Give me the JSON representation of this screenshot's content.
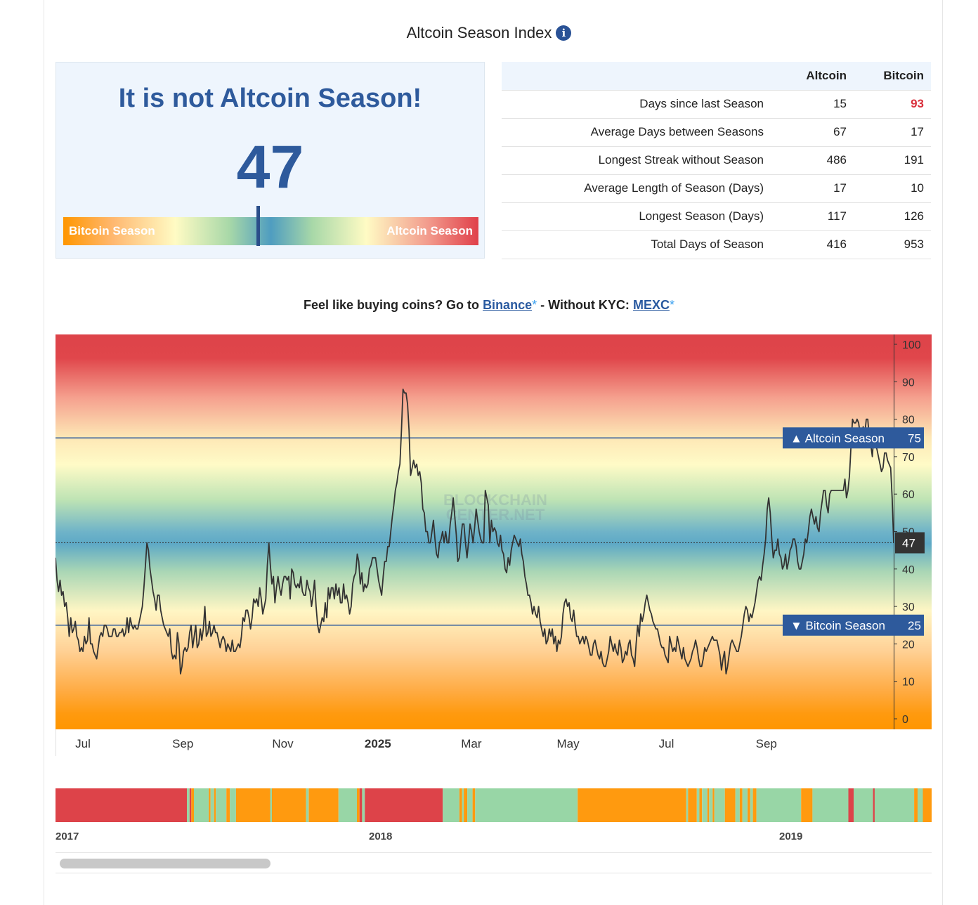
{
  "header": {
    "title": "Altcoin Season Index",
    "info_icon": "info-icon"
  },
  "status": {
    "headline": "It is not Altcoin Season!",
    "value": "47",
    "gauge_left_label": "Bitcoin Season",
    "gauge_right_label": "Altcoin Season",
    "gauge_level": 47
  },
  "stats": {
    "headers": [
      "",
      "Altcoin",
      "Bitcoin"
    ],
    "rows": [
      {
        "label": "Days since last Season",
        "altcoin": "15",
        "bitcoin": "93",
        "bitcoin_highlight": true
      },
      {
        "label": "Average Days between Seasons",
        "altcoin": "67",
        "bitcoin": "17"
      },
      {
        "label": "Longest Streak without Season",
        "altcoin": "486",
        "bitcoin": "191"
      },
      {
        "label": "Average Length of Season (Days)",
        "altcoin": "17",
        "bitcoin": "10"
      },
      {
        "label": "Longest Season (Days)",
        "altcoin": "117",
        "bitcoin": "126"
      },
      {
        "label": "Total Days of Season",
        "altcoin": "416",
        "bitcoin": "953"
      }
    ]
  },
  "promo": {
    "prefix": "Feel like buying coins? Go to",
    "link1": "Binance",
    "star": "*",
    "middle": "- Without KYC:",
    "link2": "MEXC"
  },
  "chart_data": [
    {
      "type": "line",
      "watermark": [
        "BLOCKCHAIN",
        "CENTER.NET"
      ],
      "ylim": [
        0,
        100
      ],
      "yticks": [
        0,
        10,
        20,
        30,
        40,
        50,
        60,
        70,
        80,
        90,
        100
      ],
      "x_tick_labels": [
        "Jul",
        "Sep",
        "Nov",
        "2025",
        "Mar",
        "May",
        "Jul",
        "Sep"
      ],
      "x_tick_days": [
        17,
        79,
        141,
        200,
        258,
        318,
        379,
        441
      ],
      "x_range_days": [
        0,
        520
      ],
      "current_value": 47,
      "thresholds": [
        {
          "label": "Altcoin Season",
          "value": 75,
          "direction": "up",
          "color": "#2e5a9c"
        },
        {
          "label": "Bitcoin Season",
          "value": 25,
          "direction": "down",
          "color": "#2e5a9c"
        }
      ],
      "line_color": "#333333",
      "background_colors": {
        "top": "#e0404a",
        "middle": "#4f9dc0",
        "bottom": "#ff9600"
      },
      "series": [
        {
          "values": [
            43,
            37,
            34,
            37,
            33,
            34,
            30,
            31,
            27,
            22,
            27,
            23,
            24,
            26,
            22,
            21,
            18,
            19,
            18,
            22,
            20,
            21,
            27,
            20,
            20,
            18,
            17,
            16,
            19,
            22,
            23,
            22,
            25,
            25,
            24,
            22,
            22,
            22,
            24,
            24,
            22,
            22,
            23,
            23,
            24,
            22,
            23,
            27,
            23,
            27,
            25,
            24,
            25,
            24,
            24,
            26,
            28,
            30,
            35,
            41,
            47,
            45,
            40,
            37,
            34,
            32,
            29,
            33,
            33,
            29,
            27,
            25,
            24,
            23,
            22,
            24,
            18,
            16,
            17,
            16,
            23,
            20,
            12,
            14,
            18,
            19,
            18,
            19,
            23,
            25,
            19,
            22,
            25,
            19,
            20,
            24,
            21,
            24,
            30,
            22,
            23,
            26,
            22,
            23,
            25,
            23,
            23,
            21,
            19,
            21,
            22,
            21,
            18,
            20,
            19,
            18,
            21,
            18,
            18,
            19,
            20,
            19,
            22,
            27,
            26,
            29,
            29,
            27,
            24,
            27,
            32,
            31,
            32,
            30,
            35,
            32,
            28,
            30,
            32,
            41,
            47,
            41,
            36,
            38,
            31,
            35,
            38,
            35,
            33,
            36,
            38,
            38,
            37,
            38,
            32,
            40,
            39,
            36,
            35,
            36,
            35,
            38,
            34,
            33,
            33,
            37,
            35,
            34,
            30,
            33,
            37,
            30,
            25,
            23,
            25,
            27,
            26,
            31,
            27,
            35,
            32,
            35,
            35,
            32,
            36,
            33,
            35,
            31,
            31,
            36,
            32,
            33,
            31,
            28,
            30,
            36,
            38,
            39,
            44,
            42,
            36,
            39,
            34,
            36,
            35,
            36,
            40,
            41,
            43,
            43,
            43,
            40,
            37,
            35,
            33,
            38,
            42,
            42,
            46,
            46,
            50,
            54,
            57,
            61,
            63,
            66,
            68,
            77,
            88,
            87,
            87,
            84,
            77,
            65,
            67,
            69,
            67,
            68,
            65,
            66,
            63,
            56,
            55,
            50,
            50,
            47,
            47,
            50,
            53,
            48,
            44,
            43,
            47,
            48,
            50,
            47,
            50,
            47,
            47,
            52,
            55,
            59,
            54,
            49,
            42,
            43,
            48,
            52,
            52,
            47,
            43,
            47,
            52,
            50,
            47,
            51,
            56,
            53,
            50,
            48,
            47,
            47,
            61,
            59,
            57,
            47,
            53,
            50,
            51,
            50,
            47,
            46,
            49,
            45,
            44,
            40,
            39,
            43,
            41,
            45,
            47,
            49,
            48,
            47,
            46,
            48,
            44,
            42,
            38,
            36,
            33,
            33,
            31,
            28,
            30,
            28,
            27,
            30,
            26,
            24,
            22,
            24,
            20,
            21,
            24,
            22,
            24,
            20,
            22,
            18,
            21,
            20,
            22,
            28,
            31,
            32,
            30,
            31,
            27,
            26,
            29,
            25,
            22,
            22,
            20,
            21,
            22,
            20,
            22,
            21,
            19,
            17,
            17,
            20,
            21,
            19,
            17,
            16,
            18,
            15,
            14,
            14,
            16,
            18,
            22,
            20,
            18,
            20,
            18,
            17,
            21,
            19,
            15,
            16,
            18,
            17,
            20,
            21,
            17,
            16,
            14,
            20,
            25,
            22,
            28,
            26,
            28,
            31,
            33,
            31,
            29,
            28,
            26,
            25,
            24,
            24,
            22,
            20,
            19,
            19,
            17,
            16,
            15,
            22,
            20,
            18,
            19,
            18,
            22,
            20,
            18,
            16,
            19,
            16,
            15,
            14,
            15,
            16,
            18,
            19,
            21,
            19,
            16,
            14,
            14,
            16,
            19,
            18,
            19,
            20,
            21,
            22,
            21,
            21,
            21,
            19,
            17,
            13,
            16,
            18,
            12,
            14,
            17,
            20,
            21,
            20,
            19,
            18,
            18,
            20,
            22,
            25,
            28,
            30,
            29,
            26,
            28,
            27,
            29,
            31,
            34,
            37,
            38,
            37,
            41,
            44,
            48,
            56,
            59,
            55,
            48,
            43,
            45,
            45,
            48,
            44,
            43,
            40,
            41,
            44,
            40,
            42,
            45,
            46,
            48,
            48,
            46,
            42,
            40,
            40,
            42,
            44,
            48,
            47,
            50,
            54,
            56,
            54,
            52,
            54,
            51,
            50,
            55,
            58,
            61,
            61,
            57,
            55,
            60,
            61,
            61,
            61,
            61,
            61,
            61,
            61,
            61,
            61,
            64,
            59,
            61,
            65,
            73,
            80,
            79,
            79,
            80,
            79,
            76,
            75,
            78,
            76,
            80,
            80,
            75,
            73,
            70,
            76,
            73,
            72,
            70,
            68,
            66,
            67,
            71,
            71,
            69,
            68,
            67,
            59,
            47
          ]
        }
      ]
    },
    {
      "type": "bar",
      "title": "",
      "x_tick_labels": [
        "2017",
        "2018",
        "2019"
      ],
      "segment_colors": {
        "altcoin": "#dd4349",
        "neutral": "#98d6a6",
        "bitcoin": "#ff9a0f"
      },
      "segments": [
        {
          "state": "altcoin",
          "start": 0.0,
          "end": 0.15
        },
        {
          "state": "neutral",
          "start": 0.15,
          "end": 0.153
        },
        {
          "state": "altcoin",
          "start": 0.153,
          "end": 0.155
        },
        {
          "state": "bitcoin",
          "start": 0.155,
          "end": 0.158
        },
        {
          "state": "neutral",
          "start": 0.158,
          "end": 0.175
        },
        {
          "state": "bitcoin",
          "start": 0.175,
          "end": 0.177
        },
        {
          "state": "neutral",
          "start": 0.177,
          "end": 0.181
        },
        {
          "state": "bitcoin",
          "start": 0.181,
          "end": 0.183
        },
        {
          "state": "neutral",
          "start": 0.183,
          "end": 0.195
        },
        {
          "state": "bitcoin",
          "start": 0.195,
          "end": 0.199
        },
        {
          "state": "neutral",
          "start": 0.199,
          "end": 0.206
        },
        {
          "state": "bitcoin",
          "start": 0.206,
          "end": 0.245
        },
        {
          "state": "neutral",
          "start": 0.245,
          "end": 0.247
        },
        {
          "state": "bitcoin",
          "start": 0.247,
          "end": 0.286
        },
        {
          "state": "neutral",
          "start": 0.286,
          "end": 0.289
        },
        {
          "state": "bitcoin",
          "start": 0.289,
          "end": 0.323
        },
        {
          "state": "neutral",
          "start": 0.323,
          "end": 0.344
        },
        {
          "state": "bitcoin",
          "start": 0.344,
          "end": 0.347
        },
        {
          "state": "altcoin",
          "start": 0.347,
          "end": 0.35
        },
        {
          "state": "neutral",
          "start": 0.35,
          "end": 0.353
        },
        {
          "state": "altcoin",
          "start": 0.353,
          "end": 0.442
        },
        {
          "state": "neutral",
          "start": 0.442,
          "end": 0.461
        },
        {
          "state": "bitcoin",
          "start": 0.461,
          "end": 0.464
        },
        {
          "state": "neutral",
          "start": 0.464,
          "end": 0.466
        },
        {
          "state": "bitcoin",
          "start": 0.466,
          "end": 0.47
        },
        {
          "state": "neutral",
          "start": 0.47,
          "end": 0.476
        },
        {
          "state": "bitcoin",
          "start": 0.476,
          "end": 0.479
        },
        {
          "state": "neutral",
          "start": 0.479,
          "end": 0.596
        },
        {
          "state": "bitcoin",
          "start": 0.596,
          "end": 0.72
        },
        {
          "state": "neutral",
          "start": 0.72,
          "end": 0.722
        },
        {
          "state": "bitcoin",
          "start": 0.722,
          "end": 0.732
        },
        {
          "state": "neutral",
          "start": 0.732,
          "end": 0.735
        },
        {
          "state": "bitcoin",
          "start": 0.735,
          "end": 0.738
        },
        {
          "state": "neutral",
          "start": 0.738,
          "end": 0.744
        },
        {
          "state": "bitcoin",
          "start": 0.744,
          "end": 0.746
        },
        {
          "state": "neutral",
          "start": 0.746,
          "end": 0.75
        },
        {
          "state": "bitcoin",
          "start": 0.75,
          "end": 0.752
        },
        {
          "state": "neutral",
          "start": 0.752,
          "end": 0.764
        },
        {
          "state": "bitcoin",
          "start": 0.764,
          "end": 0.776
        },
        {
          "state": "neutral",
          "start": 0.776,
          "end": 0.781
        },
        {
          "state": "bitcoin",
          "start": 0.781,
          "end": 0.784
        },
        {
          "state": "neutral",
          "start": 0.784,
          "end": 0.79
        },
        {
          "state": "bitcoin",
          "start": 0.79,
          "end": 0.793
        },
        {
          "state": "neutral",
          "start": 0.793,
          "end": 0.796
        },
        {
          "state": "bitcoin",
          "start": 0.796,
          "end": 0.8
        },
        {
          "state": "neutral",
          "start": 0.8,
          "end": 0.851
        },
        {
          "state": "bitcoin",
          "start": 0.851,
          "end": 0.864
        },
        {
          "state": "neutral",
          "start": 0.864,
          "end": 0.905
        },
        {
          "state": "altcoin",
          "start": 0.905,
          "end": 0.911
        },
        {
          "state": "neutral",
          "start": 0.911,
          "end": 0.933
        },
        {
          "state": "altcoin",
          "start": 0.933,
          "end": 0.935
        },
        {
          "state": "neutral",
          "start": 0.935,
          "end": 0.98
        },
        {
          "state": "bitcoin",
          "start": 0.98,
          "end": 0.984
        },
        {
          "state": "neutral",
          "start": 0.984,
          "end": 0.99
        },
        {
          "state": "bitcoin",
          "start": 0.99,
          "end": 1.0
        }
      ]
    }
  ]
}
